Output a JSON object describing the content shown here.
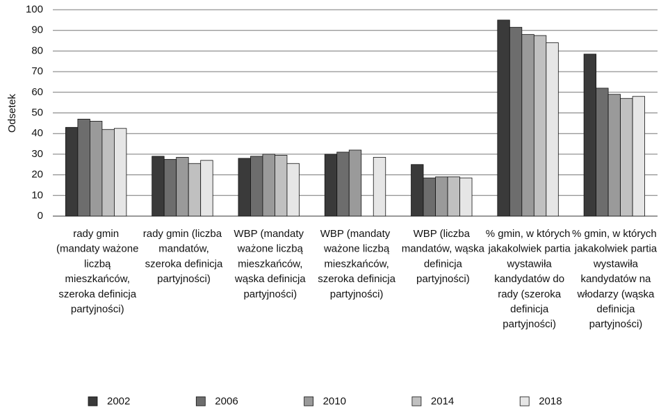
{
  "chart_data": {
    "type": "bar",
    "y_label": "Odsetek",
    "categories": [
      "rady gmin (mandaty ważone liczbą mieszkańców, szeroka definicja partyjności)",
      "rady gmin (liczba mandatów, szeroka definicja partyjności)",
      "WBP (mandaty ważone liczbą mieszkańców, wąska definicja partyjności)",
      "WBP (mandaty ważone liczbą mieszkańców, szeroka definicja partyjności)",
      "WBP (liczba mandatów, wąska definicja partyjności)",
      "% gmin, w których jakakolwiek partia wystawiła kandydatów do rady (szeroka definicja partyjności)",
      "% gmin, w których jakakolwiek partia wystawiła kandydatów na włodarzy (wąska definicja partyjności)"
    ],
    "series": [
      {
        "name": "2002",
        "color": "#3a3a3a",
        "values": [
          43,
          29,
          28,
          30,
          25,
          95,
          78.5
        ]
      },
      {
        "name": "2006",
        "color": "#6d6d6d",
        "values": [
          47,
          27.5,
          29,
          31,
          18.5,
          91.5,
          62
        ]
      },
      {
        "name": "2010",
        "color": "#9a9a9a",
        "values": [
          46,
          28.5,
          30,
          32,
          19,
          88,
          59
        ]
      },
      {
        "name": "2014",
        "color": "#c0c0c0",
        "values": [
          42,
          25.5,
          29.5,
          null,
          19,
          87.5,
          57
        ]
      },
      {
        "name": "2018",
        "color": "#e6e6e6",
        "values": [
          42.5,
          27,
          25.5,
          28.5,
          18.5,
          84,
          58
        ]
      }
    ],
    "ylim": [
      0,
      100
    ],
    "yticks": [
      0,
      10,
      20,
      30,
      40,
      50,
      60,
      70,
      80,
      90,
      100
    ],
    "grid": true
  }
}
